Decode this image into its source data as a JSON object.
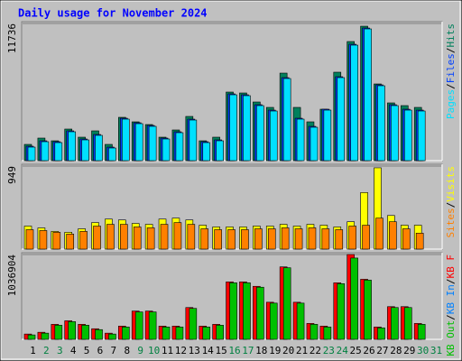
{
  "chart_data": [
    {
      "type": "bar",
      "title": "Daily usage for November 2024",
      "separator": "/",
      "ylim": [
        0,
        11736
      ],
      "yticks": [
        11736
      ],
      "series": [
        {
          "name": "Hits",
          "color": "#00805c",
          "values": [
            1390,
            1930,
            1698,
            2702,
            2007,
            2548,
            1390,
            3706,
            3320,
            3088,
            2007,
            2625,
            3783,
            1698,
            2007,
            5867,
            5790,
            5018,
            4555,
            7488,
            4555,
            3320,
            4400,
            7566,
            10190,
            11503,
            6562,
            4941,
            4709,
            4555,
            null
          ]
        },
        {
          "name": "Files",
          "color": "#0040ff",
          "values": [
            1235,
            1698,
            1621,
            2548,
            1853,
            2239,
            1158,
            3628,
            3242,
            3011,
            1930,
            2470,
            3551,
            1621,
            1776,
            5713,
            5636,
            4786,
            4323,
            7102,
            3628,
            2934,
            4400,
            7180,
            9959,
            11348,
            6485,
            4786,
            4400,
            4323,
            null
          ]
        },
        {
          "name": "Pages",
          "color": "#00e0ff",
          "values": [
            1158,
            1621,
            1544,
            2471,
            1776,
            2162,
            1081,
            3551,
            3165,
            2934,
            1853,
            2393,
            3474,
            1544,
            1699,
            5636,
            5559,
            4709,
            4246,
            7025,
            3551,
            2857,
            4323,
            7103,
            9882,
            11271,
            6408,
            4709,
            4323,
            4246,
            null
          ]
        }
      ]
    },
    {
      "type": "bar",
      "separator": "/",
      "ylim": [
        0,
        949
      ],
      "yticks": [
        949
      ],
      "series": [
        {
          "name": "Visits",
          "color": "#ffff00",
          "values": [
            263,
            242,
            202,
            192,
            232,
            303,
            343,
            333,
            293,
            283,
            343,
            354,
            333,
            273,
            253,
            253,
            253,
            263,
            263,
            283,
            263,
            283,
            273,
            253,
            313,
            646,
            929,
            384,
            273,
            273,
            null
          ]
        },
        {
          "name": "Sites",
          "color": "#ff8000",
          "values": [
            222,
            212,
            192,
            172,
            202,
            263,
            283,
            283,
            253,
            243,
            283,
            303,
            283,
            232,
            222,
            222,
            222,
            232,
            232,
            243,
            232,
            243,
            232,
            222,
            263,
            273,
            354,
            313,
            232,
            182,
            null
          ]
        }
      ]
    },
    {
      "type": "bar",
      "separator": "/",
      "ylim": [
        0,
        1036904
      ],
      "yticks": [
        1036904
      ],
      "categories": [
        "1",
        "2",
        "3",
        "4",
        "5",
        "6",
        "7",
        "8",
        "9",
        "10",
        "11",
        "12",
        "13",
        "14",
        "15",
        "16",
        "17",
        "18",
        "19",
        "20",
        "21",
        "22",
        "23",
        "24",
        "25",
        "26",
        "27",
        "28",
        "29",
        "30",
        "31"
      ],
      "category_colors": [
        "#000000",
        "#008040",
        "#008040",
        "#000000",
        "#000000",
        "#000000",
        "#000000",
        "#000000",
        "#008040",
        "#008040",
        "#000000",
        "#000000",
        "#000000",
        "#000000",
        "#000000",
        "#008040",
        "#008040",
        "#000000",
        "#000000",
        "#000000",
        "#000000",
        "#000000",
        "#008040",
        "#008040",
        "#000000",
        "#000000",
        "#000000",
        "#000000",
        "#000000",
        "#008040",
        "#008040"
      ],
      "series": [
        {
          "name": "KB F",
          "color": "#ff0000",
          "values": [
            64806,
            86408,
            183617,
            226821,
            183617,
            129612,
            75607,
            162015,
            345632,
            345632,
            162015,
            162015,
            388836,
            162015,
            183617,
            702065,
            702065,
            648060,
            453642,
            885682,
            453642,
            194418,
            162015,
            691264,
            1036904,
            734468,
            151214,
            399637,
            399637,
            194418,
            null
          ]
        },
        {
          "name": "KB In",
          "color": "#0080ff",
          "values": [
            0,
            0,
            0,
            0,
            0,
            0,
            0,
            0,
            0,
            0,
            0,
            0,
            0,
            0,
            0,
            0,
            0,
            0,
            0,
            0,
            0,
            0,
            0,
            0,
            0,
            0,
            0,
            0,
            0,
            0,
            null
          ]
        },
        {
          "name": "KB Out",
          "color": "#00c000",
          "values": [
            54005,
            75607,
            172816,
            216020,
            172816,
            118811,
            64806,
            151214,
            334831,
            334831,
            151214,
            151214,
            378035,
            151214,
            172816,
            691264,
            691264,
            637259,
            442841,
            874881,
            442841,
            183617,
            151214,
            680463,
            993692,
            723667,
            140413,
            388836,
            388836,
            183617,
            null
          ]
        }
      ]
    }
  ]
}
